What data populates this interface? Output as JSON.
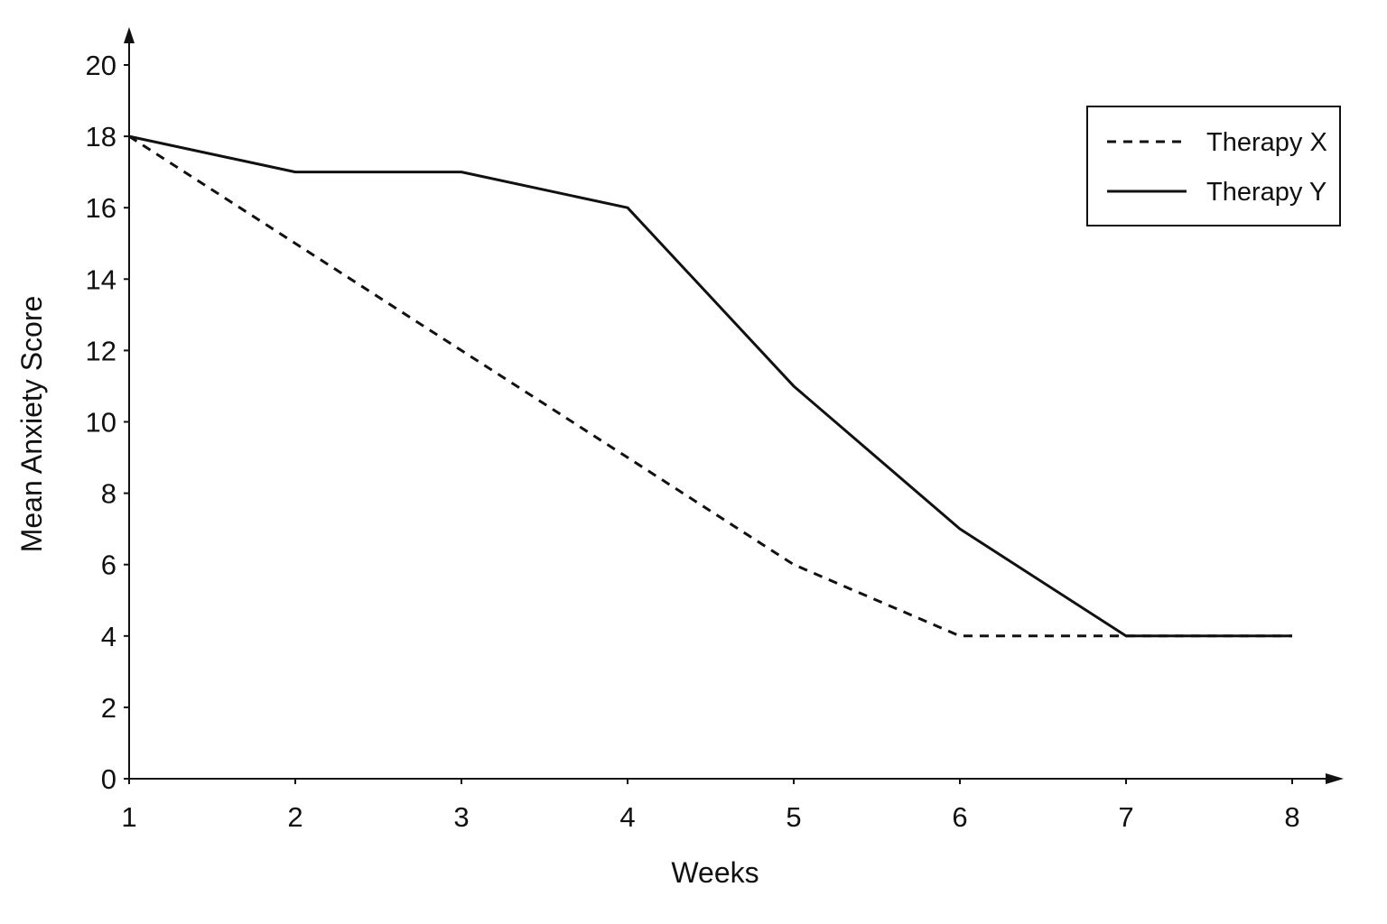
{
  "chart_data": {
    "type": "line",
    "title": "",
    "xlabel": "Weeks",
    "ylabel": "Mean Anxiety Score",
    "x": [
      1,
      2,
      3,
      4,
      5,
      6,
      7,
      8
    ],
    "xlim": [
      1,
      8
    ],
    "ylim": [
      0,
      20
    ],
    "x_ticks": [
      1,
      2,
      3,
      4,
      5,
      6,
      7,
      8
    ],
    "y_ticks": [
      0,
      2,
      4,
      6,
      8,
      10,
      12,
      14,
      16,
      18,
      20
    ],
    "grid": false,
    "legend_position": "top-right",
    "series": [
      {
        "name": "Therapy X",
        "line_style": "dashed",
        "color": "#111111",
        "values": [
          18,
          15,
          12,
          9,
          6,
          4,
          4,
          4
        ]
      },
      {
        "name": "Therapy Y",
        "line_style": "solid",
        "color": "#111111",
        "values": [
          18,
          17,
          17,
          16,
          11,
          7,
          4,
          4
        ]
      }
    ]
  }
}
